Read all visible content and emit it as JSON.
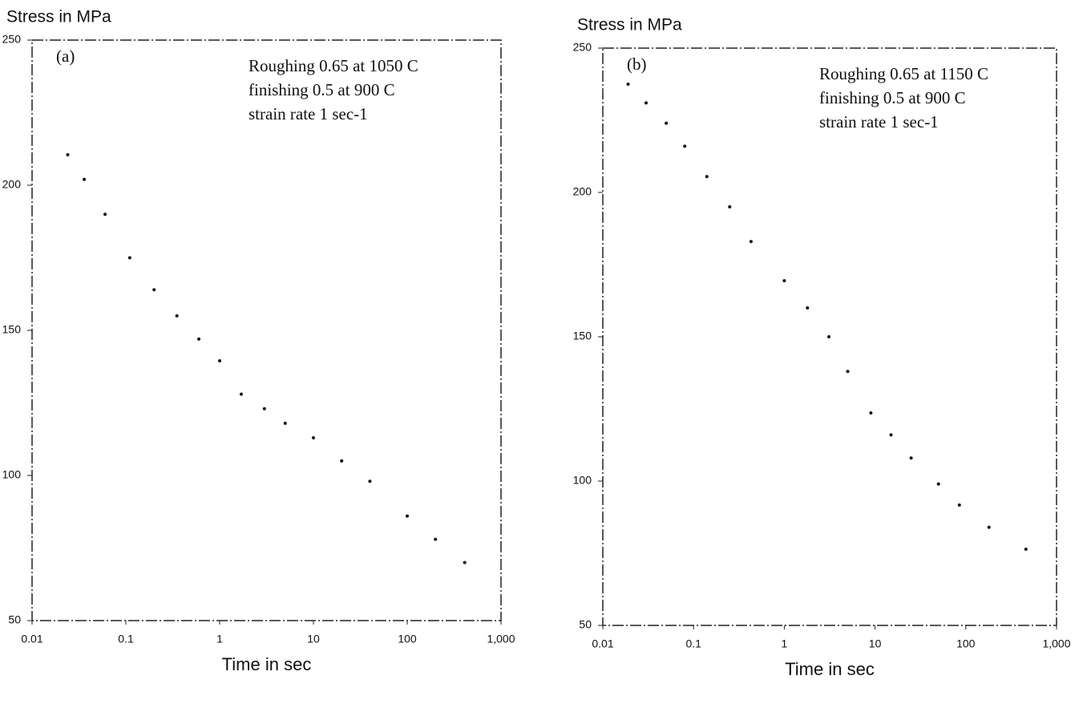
{
  "chart_data": [
    {
      "type": "scatter",
      "y_label": "Stress in MPa",
      "x_label": "Time in sec",
      "panel": "(a)",
      "annotations": [
        "Roughing 0.65 at 1050 C",
        "finishing 0.5 at 900 C",
        "strain rate 1 sec-1"
      ],
      "xscale": "log",
      "color": "#111111",
      "x": [
        0.024,
        0.036,
        0.06,
        0.11,
        0.2,
        0.35,
        0.6,
        1,
        1.7,
        3,
        5,
        10,
        20,
        40,
        100,
        200,
        410
      ],
      "values": [
        210.5,
        202,
        190,
        175,
        164,
        155,
        147,
        139.5,
        128,
        123,
        118,
        113,
        105,
        98,
        86,
        78,
        70
      ],
      "xlim": [
        0.01,
        1000
      ],
      "ylim": [
        50,
        250
      ],
      "xticks": [
        0.01,
        0.1,
        1,
        10,
        100,
        {
          "value": 1000,
          "label": "1,000"
        }
      ],
      "yticks": [
        50,
        100,
        150,
        200,
        250
      ]
    },
    {
      "type": "scatter",
      "y_label": "Stress in MPa",
      "x_label": "Time in sec",
      "panel": "(b)",
      "annotations": [
        "Roughing 0.65 at 1150 C",
        "finishing 0.5 at 900 C",
        "strain rate 1 sec-1"
      ],
      "xscale": "log",
      "color": "#111111",
      "x": [
        0.019,
        0.03,
        0.05,
        0.08,
        0.14,
        0.25,
        0.43,
        1,
        1.8,
        3.1,
        5,
        9,
        15,
        25,
        50,
        85,
        180,
        460
      ],
      "values": [
        237.5,
        231,
        224,
        216,
        205.5,
        195,
        183,
        169.4,
        160,
        150,
        138,
        123.6,
        116,
        108,
        99,
        91.7,
        84,
        76.4
      ],
      "xlim": [
        0.01,
        1000
      ],
      "ylim": [
        50,
        250
      ],
      "xticks": [
        0.01,
        0.1,
        1,
        10,
        100,
        {
          "value": 1000,
          "label": "1,000"
        }
      ],
      "yticks": [
        50,
        100,
        150,
        200,
        250
      ]
    }
  ]
}
